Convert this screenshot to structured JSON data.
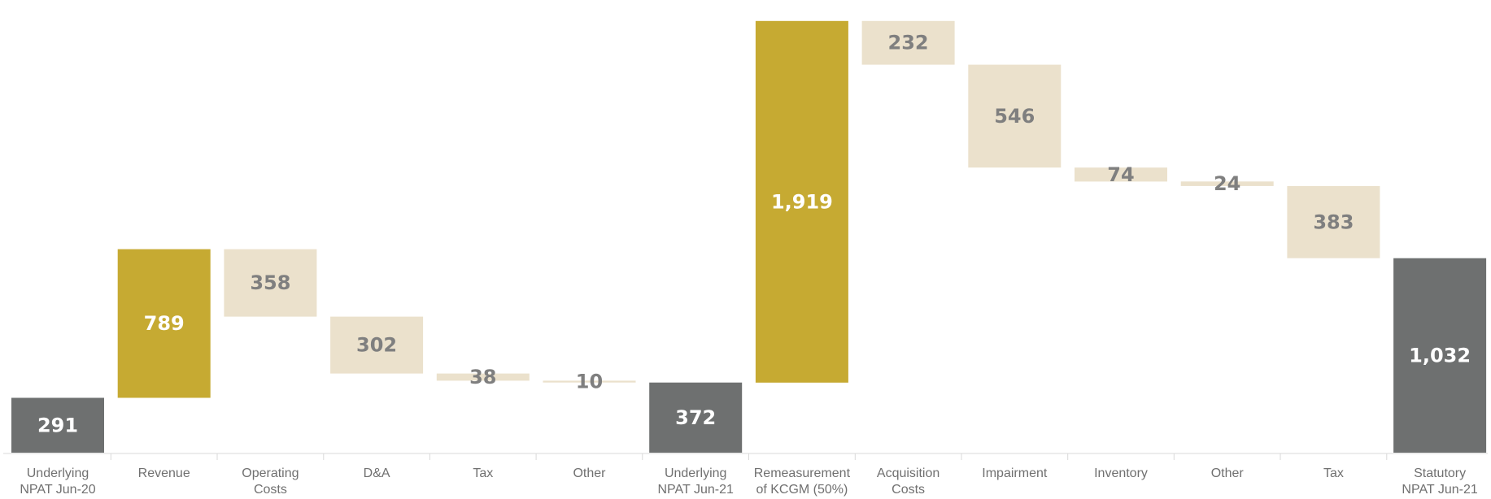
{
  "chart_data": {
    "type": "bar",
    "subtype": "waterfall",
    "title": "",
    "xlabel": "",
    "ylabel": "",
    "ylim": [
      0,
      2372
    ],
    "grid": false,
    "legend": "none",
    "categories": [
      [
        "Underlying",
        "NPAT Jun-20"
      ],
      [
        "Revenue"
      ],
      [
        "Operating",
        "Costs"
      ],
      [
        "D&A"
      ],
      [
        "Tax"
      ],
      [
        "Other"
      ],
      [
        "Underlying",
        "NPAT Jun-21"
      ],
      [
        "Remeasurement",
        "of KCGM (50%)"
      ],
      [
        "Acquisition",
        "Costs"
      ],
      [
        "Impairment"
      ],
      [
        "Inventory"
      ],
      [
        "Other"
      ],
      [
        "Tax"
      ],
      [
        "Statutory",
        "NPAT Jun-21"
      ]
    ],
    "steps": [
      {
        "kind": "total",
        "value": 291,
        "label": "291"
      },
      {
        "kind": "increase",
        "value": 789,
        "label": "789"
      },
      {
        "kind": "decrease",
        "value": 358,
        "label": "358"
      },
      {
        "kind": "decrease",
        "value": 302,
        "label": "302"
      },
      {
        "kind": "decrease",
        "value": 38,
        "label": "38"
      },
      {
        "kind": "decrease",
        "value": 10,
        "label": "10"
      },
      {
        "kind": "total",
        "value": 372,
        "label": "372"
      },
      {
        "kind": "increase",
        "value": 1919,
        "label": "1,919"
      },
      {
        "kind": "decrease",
        "value": 232,
        "label": "232"
      },
      {
        "kind": "decrease",
        "value": 546,
        "label": "546"
      },
      {
        "kind": "decrease",
        "value": 74,
        "label": "74"
      },
      {
        "kind": "decrease",
        "value": 24,
        "label": "24"
      },
      {
        "kind": "decrease",
        "value": 383,
        "label": "383"
      },
      {
        "kind": "total",
        "value": 1032,
        "label": "1,032"
      }
    ],
    "colors": {
      "total": "#6e7070",
      "increase": "#c6aa32",
      "decrease": "#ebe1cc",
      "label_on_dark": "#ffffff",
      "label_on_light": "#7f7f7f",
      "axis": "#d9d9d9",
      "category_text": "#707070"
    }
  }
}
